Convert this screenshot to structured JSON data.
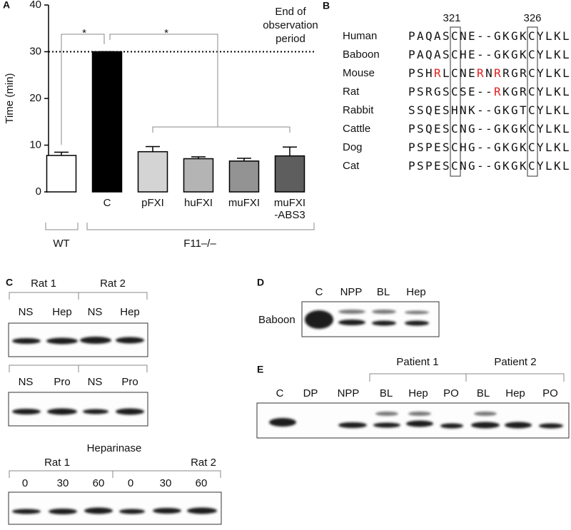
{
  "chart_data": {
    "type": "bar",
    "panel_label": "A",
    "y_label": "Time (min)",
    "categories": [
      null,
      "C",
      "pFXI",
      "huFXI",
      "muFXI",
      "muFXI\n-ABS3"
    ],
    "values": [
      7.8,
      30,
      8.6,
      7.1,
      6.6,
      7.7
    ],
    "errors": [
      0.7,
      0,
      1.1,
      0.4,
      0.6,
      1.9
    ],
    "colors": [
      "#ffffff",
      "#000000",
      "#d4d4d4",
      "#b4b4b4",
      "#939393",
      "#5e5e5e"
    ],
    "ylim": [
      0,
      40
    ],
    "yticks": [
      0,
      10,
      20,
      30,
      40
    ],
    "reference_line": 30,
    "annotation": "End of\nobservation\nperiod",
    "groups": [
      "WT",
      "F11–/–"
    ],
    "significance": [
      "*",
      "*"
    ]
  },
  "panel_b": {
    "label": "B",
    "positions": [
      "321",
      "326"
    ],
    "rows": [
      {
        "species": "Human",
        "sequence": [
          {
            "text": "PAQASCNE--GKGKCYLKL"
          }
        ]
      },
      {
        "species": "Baboon",
        "sequence": [
          {
            "text": "PAQASCHE--GKGKCYLKL"
          }
        ]
      },
      {
        "species": "Mouse",
        "sequence": [
          {
            "text": "PSH"
          },
          {
            "text": "R",
            "color": "#e0201c"
          },
          {
            "text": "LCNE"
          },
          {
            "text": "R",
            "color": "#e0201c"
          },
          {
            "text": "N"
          },
          {
            "text": "R",
            "color": "#e0201c"
          },
          {
            "text": "RGRCYLKL"
          }
        ]
      },
      {
        "species": "Rat",
        "sequence": [
          {
            "text": "PSRGSCSE--"
          },
          {
            "text": "R",
            "color": "#e0201c"
          },
          {
            "text": "KGRCYLKL"
          }
        ]
      },
      {
        "species": "Rabbit",
        "sequence": [
          {
            "text": "SSQESHNK--GKGTCYLKL"
          }
        ]
      },
      {
        "species": "Cattle",
        "sequence": [
          {
            "text": "PSQESCNG--GKGKCYLKL"
          }
        ]
      },
      {
        "species": "Dog",
        "sequence": [
          {
            "text": "PSPESCHG--GKGKCYLKL"
          }
        ]
      },
      {
        "species": "Cat",
        "sequence": [
          {
            "text": "PSPESCNG--GKGKCYLKL"
          }
        ]
      }
    ]
  },
  "panel_c": {
    "label": "C",
    "groups1": [
      "Rat 1",
      "Rat 2"
    ],
    "lanes1": [
      "NS",
      "Hep",
      "NS",
      "Hep"
    ],
    "lanes2": [
      "NS",
      "Pro",
      "NS",
      "Pro"
    ],
    "title3": "Heparinase",
    "groups3": [
      "Rat 1",
      "Rat 2"
    ],
    "lanes3": [
      "0",
      "30",
      "60",
      "0",
      "30",
      "60"
    ]
  },
  "panel_d": {
    "label": "D",
    "lanes": [
      "C",
      "NPP",
      "BL",
      "Hep"
    ],
    "row_label": "Baboon"
  },
  "panel_e": {
    "label": "E",
    "groups": [
      "Patient 1",
      "Patient 2"
    ],
    "lanes": [
      "C",
      "DP",
      "NPP",
      "BL",
      "Hep",
      "PO",
      "BL",
      "Hep",
      "PO"
    ]
  }
}
